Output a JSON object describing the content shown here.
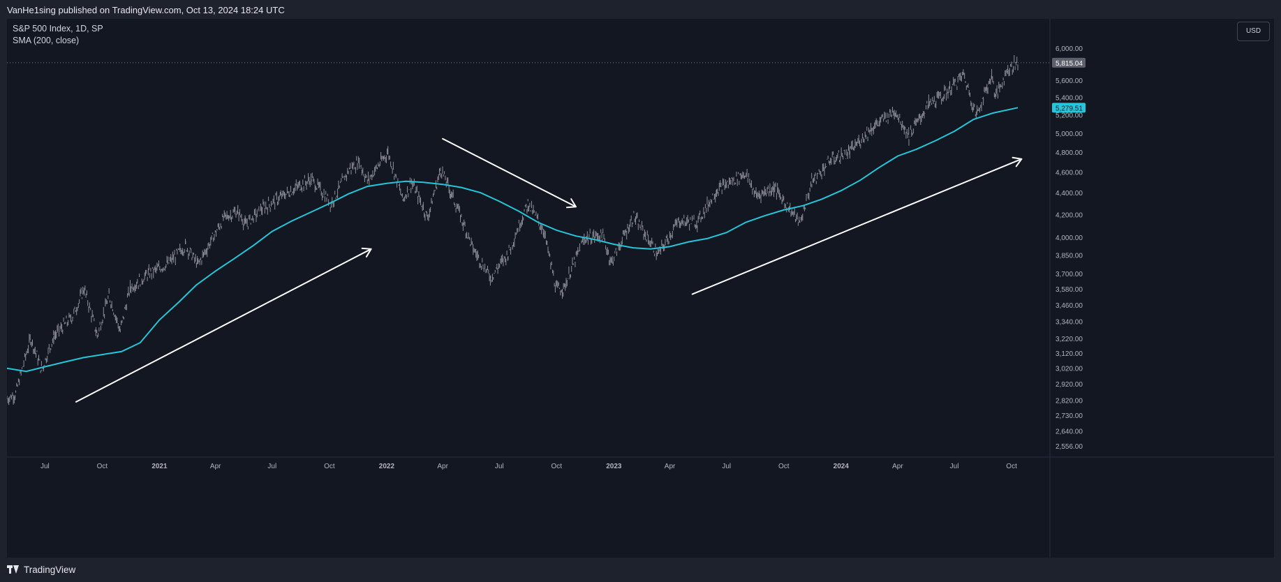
{
  "publish_note": "VanHe1sing published on TradingView.com, Oct 13, 2024 18:24 UTC",
  "legend": {
    "symbol": "S&P 500 Index, 1D, SP",
    "indicator": "SMA (200, close)"
  },
  "currency_button": "USD",
  "footer_brand": "TradingView",
  "icons": {
    "brand": "tradingview-logo-icon"
  },
  "colors": {
    "background": "#131722",
    "price": "#9598a1",
    "sma": "#26c6da",
    "annotation": "#ffffff"
  },
  "chart_data": {
    "type": "line",
    "scale": "log",
    "ylim": [
      2500,
      6200
    ],
    "grid": false,
    "y_ticks": [
      6000,
      5600,
      5400,
      5200,
      5000,
      4800,
      4600,
      4400,
      4200,
      4000,
      3850,
      3700,
      3580,
      3460,
      3340,
      3220,
      3120,
      3020,
      2920,
      2820,
      2730,
      2640,
      2556
    ],
    "y_tick_labels": [
      "6,000.00",
      "5,600.00",
      "5,400.00",
      "5,200.00",
      "5,000.00",
      "4,800.00",
      "4,600.00",
      "4,400.00",
      "4,200.00",
      "4,000.00",
      "3,850.00",
      "3,700.00",
      "3,580.00",
      "3,460.00",
      "3,340.00",
      "3,220.00",
      "3,120.00",
      "3,020.00",
      "2,920.00",
      "2,820.00",
      "2,730.00",
      "2,640.00",
      "2,556.00"
    ],
    "x_ticks": [
      {
        "date": "2020-07-01",
        "label": "Jul",
        "bold": false
      },
      {
        "date": "2020-10-01",
        "label": "Oct",
        "bold": false
      },
      {
        "date": "2021-01-01",
        "label": "2021",
        "bold": true
      },
      {
        "date": "2021-04-01",
        "label": "Apr",
        "bold": false
      },
      {
        "date": "2021-07-01",
        "label": "Jul",
        "bold": false
      },
      {
        "date": "2021-10-01",
        "label": "Oct",
        "bold": false
      },
      {
        "date": "2022-01-01",
        "label": "2022",
        "bold": true
      },
      {
        "date": "2022-04-01",
        "label": "Apr",
        "bold": false
      },
      {
        "date": "2022-07-01",
        "label": "Jul",
        "bold": false
      },
      {
        "date": "2022-10-01",
        "label": "Oct",
        "bold": false
      },
      {
        "date": "2023-01-01",
        "label": "2023",
        "bold": true
      },
      {
        "date": "2023-04-01",
        "label": "Apr",
        "bold": false
      },
      {
        "date": "2023-07-01",
        "label": "Jul",
        "bold": false
      },
      {
        "date": "2023-10-01",
        "label": "Oct",
        "bold": false
      },
      {
        "date": "2024-01-01",
        "label": "2024",
        "bold": true
      },
      {
        "date": "2024-04-01",
        "label": "Apr",
        "bold": false
      },
      {
        "date": "2024-07-01",
        "label": "Jul",
        "bold": false
      },
      {
        "date": "2024-10-01",
        "label": "Oct",
        "bold": false
      }
    ],
    "price_label": {
      "value": 5815.04,
      "text": "5,815.04"
    },
    "sma_label": {
      "value": 5279.51,
      "text": "5,279.51"
    },
    "series": [
      {
        "name": "S&P 500 Index",
        "kind": "price",
        "points": [
          [
            "2020-05-01",
            2830
          ],
          [
            "2020-05-15",
            2860
          ],
          [
            "2020-06-08",
            3220
          ],
          [
            "2020-06-26",
            3010
          ],
          [
            "2020-07-15",
            3230
          ],
          [
            "2020-08-15",
            3380
          ],
          [
            "2020-09-02",
            3580
          ],
          [
            "2020-09-23",
            3240
          ],
          [
            "2020-10-12",
            3530
          ],
          [
            "2020-10-30",
            3270
          ],
          [
            "2020-11-15",
            3590
          ],
          [
            "2020-12-15",
            3700
          ],
          [
            "2021-01-15",
            3780
          ],
          [
            "2021-02-12",
            3930
          ],
          [
            "2021-03-04",
            3770
          ],
          [
            "2021-04-15",
            4170
          ],
          [
            "2021-05-07",
            4230
          ],
          [
            "2021-05-19",
            4110
          ],
          [
            "2021-06-15",
            4250
          ],
          [
            "2021-07-15",
            4360
          ],
          [
            "2021-08-15",
            4470
          ],
          [
            "2021-09-02",
            4530
          ],
          [
            "2021-10-04",
            4300
          ],
          [
            "2021-11-02",
            4630
          ],
          [
            "2021-11-18",
            4700
          ],
          [
            "2021-12-01",
            4510
          ],
          [
            "2022-01-03",
            4800
          ],
          [
            "2022-01-27",
            4330
          ],
          [
            "2022-02-10",
            4500
          ],
          [
            "2022-03-08",
            4170
          ],
          [
            "2022-03-29",
            4630
          ],
          [
            "2022-04-15",
            4390
          ],
          [
            "2022-05-20",
            3900
          ],
          [
            "2022-06-17",
            3670
          ],
          [
            "2022-07-15",
            3860
          ],
          [
            "2022-08-16",
            4300
          ],
          [
            "2022-09-10",
            4060
          ],
          [
            "2022-09-30",
            3580
          ],
          [
            "2022-10-12",
            3580
          ],
          [
            "2022-11-15",
            3990
          ],
          [
            "2022-12-13",
            4020
          ],
          [
            "2022-12-28",
            3790
          ],
          [
            "2023-02-02",
            4180
          ],
          [
            "2023-03-13",
            3850
          ],
          [
            "2023-04-15",
            4140
          ],
          [
            "2023-05-15",
            4130
          ],
          [
            "2023-06-15",
            4420
          ],
          [
            "2023-07-31",
            4590
          ],
          [
            "2023-08-18",
            4370
          ],
          [
            "2023-09-15",
            4450
          ],
          [
            "2023-10-27",
            4120
          ],
          [
            "2023-11-15",
            4500
          ],
          [
            "2023-12-15",
            4720
          ],
          [
            "2024-01-15",
            4800
          ],
          [
            "2024-02-15",
            5030
          ],
          [
            "2024-03-28",
            5250
          ],
          [
            "2024-04-19",
            4970
          ],
          [
            "2024-05-21",
            5320
          ],
          [
            "2024-06-15",
            5430
          ],
          [
            "2024-07-16",
            5670
          ],
          [
            "2024-08-05",
            5190
          ],
          [
            "2024-08-30",
            5650
          ],
          [
            "2024-09-06",
            5410
          ],
          [
            "2024-09-25",
            5740
          ],
          [
            "2024-10-11",
            5815
          ]
        ]
      },
      {
        "name": "SMA (200, close)",
        "kind": "sma",
        "points": [
          [
            "2020-05-01",
            3020
          ],
          [
            "2020-06-01",
            3000
          ],
          [
            "2020-07-01",
            3030
          ],
          [
            "2020-08-01",
            3060
          ],
          [
            "2020-09-01",
            3090
          ],
          [
            "2020-10-01",
            3110
          ],
          [
            "2020-11-01",
            3130
          ],
          [
            "2020-12-01",
            3190
          ],
          [
            "2021-01-01",
            3350
          ],
          [
            "2021-02-01",
            3480
          ],
          [
            "2021-03-01",
            3610
          ],
          [
            "2021-04-01",
            3720
          ],
          [
            "2021-05-01",
            3820
          ],
          [
            "2021-06-01",
            3930
          ],
          [
            "2021-07-01",
            4050
          ],
          [
            "2021-08-01",
            4140
          ],
          [
            "2021-09-01",
            4220
          ],
          [
            "2021-10-01",
            4300
          ],
          [
            "2021-11-01",
            4390
          ],
          [
            "2021-12-01",
            4460
          ],
          [
            "2022-01-01",
            4490
          ],
          [
            "2022-02-01",
            4510
          ],
          [
            "2022-03-01",
            4500
          ],
          [
            "2022-04-01",
            4480
          ],
          [
            "2022-05-01",
            4450
          ],
          [
            "2022-06-01",
            4400
          ],
          [
            "2022-07-01",
            4320
          ],
          [
            "2022-08-01",
            4230
          ],
          [
            "2022-09-01",
            4130
          ],
          [
            "2022-10-01",
            4060
          ],
          [
            "2022-11-01",
            4010
          ],
          [
            "2022-12-01",
            3980
          ],
          [
            "2023-01-01",
            3940
          ],
          [
            "2023-02-01",
            3910
          ],
          [
            "2023-03-01",
            3900
          ],
          [
            "2023-04-01",
            3920
          ],
          [
            "2023-05-01",
            3960
          ],
          [
            "2023-06-01",
            3990
          ],
          [
            "2023-07-01",
            4040
          ],
          [
            "2023-08-01",
            4130
          ],
          [
            "2023-09-01",
            4190
          ],
          [
            "2023-10-01",
            4240
          ],
          [
            "2023-11-01",
            4280
          ],
          [
            "2023-12-01",
            4340
          ],
          [
            "2024-01-01",
            4420
          ],
          [
            "2024-02-01",
            4520
          ],
          [
            "2024-03-01",
            4640
          ],
          [
            "2024-04-01",
            4760
          ],
          [
            "2024-05-01",
            4830
          ],
          [
            "2024-06-01",
            4920
          ],
          [
            "2024-07-01",
            5020
          ],
          [
            "2024-08-01",
            5150
          ],
          [
            "2024-09-01",
            5220
          ],
          [
            "2024-10-11",
            5280
          ]
        ]
      }
    ],
    "annotations": [
      {
        "type": "arrow",
        "from": [
          "2020-08-20",
          2810
        ],
        "to": [
          "2021-12-07",
          3900
        ]
      },
      {
        "type": "arrow",
        "from": [
          "2022-04-01",
          4940
        ],
        "to": [
          "2022-11-01",
          4270
        ]
      },
      {
        "type": "arrow",
        "from": [
          "2023-05-07",
          3540
        ],
        "to": [
          "2024-10-17",
          4730
        ]
      }
    ]
  }
}
